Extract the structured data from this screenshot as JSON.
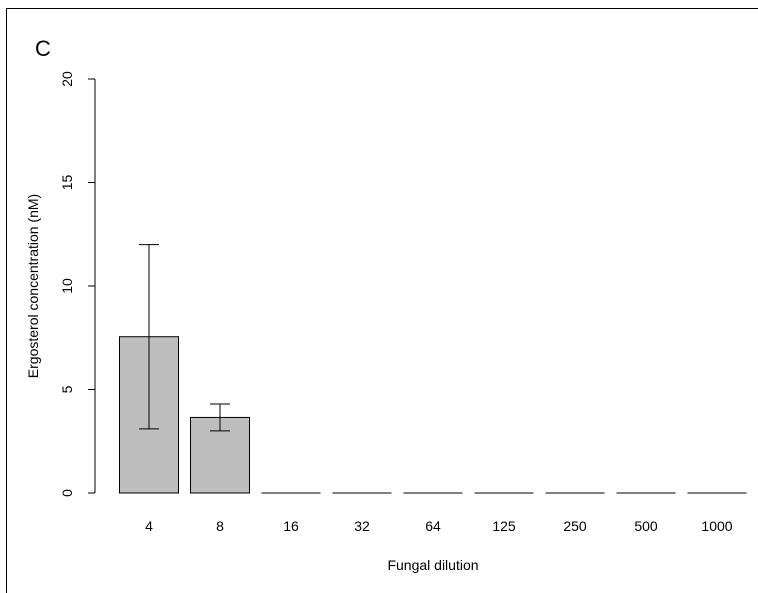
{
  "panel_label": "C",
  "chart_data": {
    "type": "bar",
    "categories": [
      "4",
      "8",
      "16",
      "32",
      "64",
      "125",
      "250",
      "500",
      "1000"
    ],
    "values": [
      7.55,
      3.65,
      0,
      0,
      0,
      0,
      0,
      0,
      0
    ],
    "error_low": [
      3.1,
      3.0,
      null,
      null,
      null,
      null,
      null,
      null,
      null
    ],
    "error_high": [
      12.0,
      4.3,
      null,
      null,
      null,
      null,
      null,
      null,
      null
    ],
    "xlabel": "Fungal dilution",
    "ylabel": "Ergosterol concentration (nM)",
    "ylim": [
      0,
      20
    ],
    "yticks": [
      "0",
      "5",
      "10",
      "15",
      "20"
    ],
    "bar_color": "#bebebe",
    "grid": false,
    "legend": "none"
  }
}
